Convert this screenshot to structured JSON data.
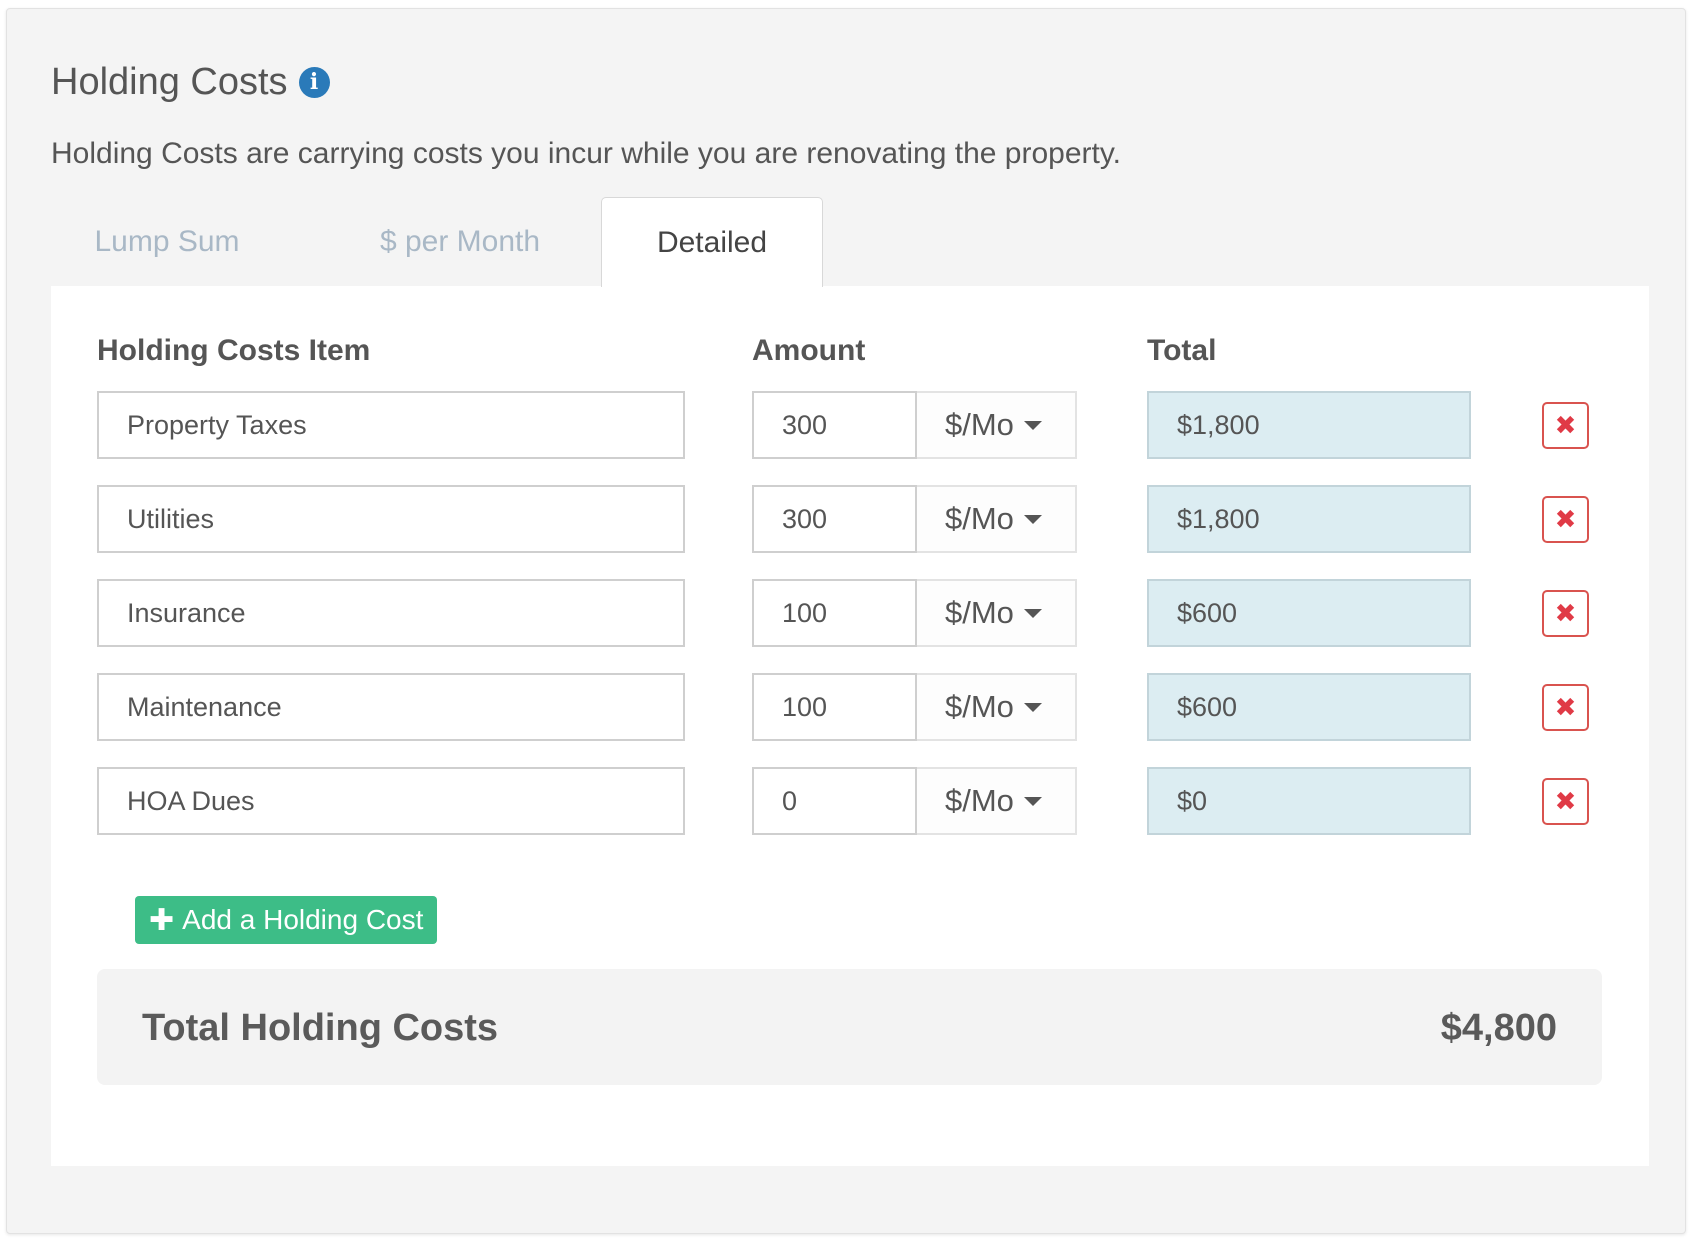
{
  "header": {
    "title": "Holding Costs",
    "description": "Holding Costs are carrying costs you incur while you are renovating the property."
  },
  "tabs": [
    {
      "label": "Lump Sum",
      "active": false
    },
    {
      "label": "$ per Month",
      "active": false
    },
    {
      "label": "Detailed",
      "active": true
    }
  ],
  "columns": {
    "item": "Holding Costs Item",
    "amount": "Amount",
    "total": "Total"
  },
  "rows": [
    {
      "item": "Property Taxes",
      "amount": "300",
      "unit": "$/Mo",
      "total": "$1,800"
    },
    {
      "item": "Utilities",
      "amount": "300",
      "unit": "$/Mo",
      "total": "$1,800"
    },
    {
      "item": "Insurance",
      "amount": "100",
      "unit": "$/Mo",
      "total": "$600"
    },
    {
      "item": "Maintenance",
      "amount": "100",
      "unit": "$/Mo",
      "total": "$600"
    },
    {
      "item": "HOA Dues",
      "amount": "0",
      "unit": "$/Mo",
      "total": "$0"
    }
  ],
  "add_button_label": "Add a Holding Cost",
  "summary": {
    "label": "Total Holding Costs",
    "value": "$4,800"
  },
  "colors": {
    "info_icon": "#2a7ab9",
    "add_button": "#3dbd87",
    "delete": "#e03a46",
    "total_field_bg": "#dcedf2"
  },
  "icons": {
    "info": "info-icon",
    "delete": "close-icon",
    "add": "plus-icon",
    "dropdown": "chevron-down-icon"
  }
}
